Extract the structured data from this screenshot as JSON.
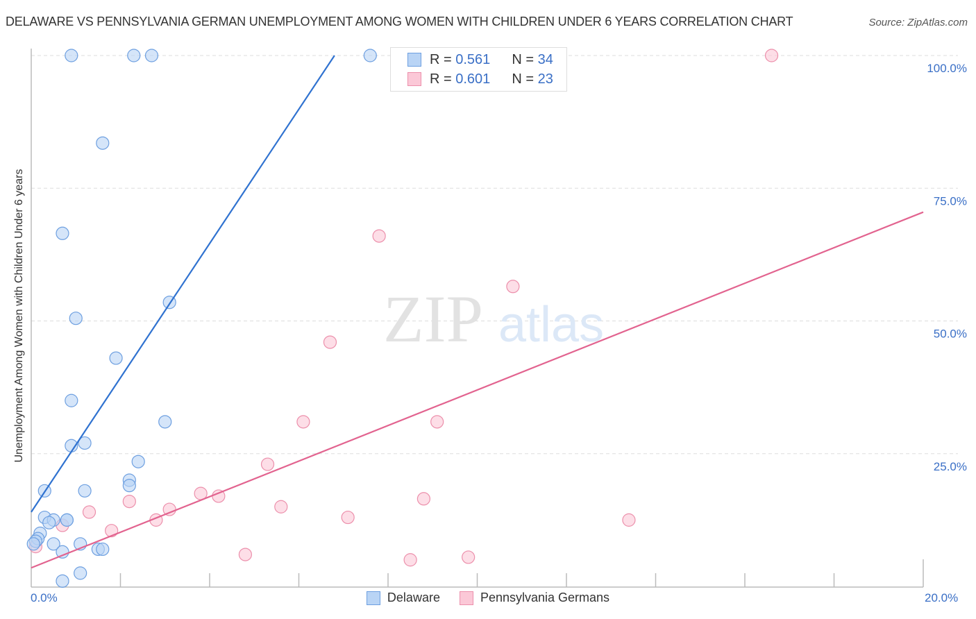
{
  "header": {
    "title": "DELAWARE VS PENNSYLVANIA GERMAN UNEMPLOYMENT AMONG WOMEN WITH CHILDREN UNDER 6 YEARS CORRELATION CHART",
    "source": "Source: ZipAtlas.com"
  },
  "legend": {
    "rows": [
      {
        "r_label": "R =",
        "r_value": "0.561",
        "n_label": "N =",
        "n_value": "34",
        "color": "#b9d4f5",
        "border": "#6d9fe0"
      },
      {
        "r_label": "R =",
        "r_value": "0.601",
        "n_label": "N =",
        "n_value": "23",
        "color": "#fbc8d7",
        "border": "#ec8fab"
      }
    ]
  },
  "bottom_legend": [
    {
      "label": "Delaware",
      "color": "#b9d4f5",
      "border": "#6d9fe0"
    },
    {
      "label": "Pennsylvania Germans",
      "color": "#fbc8d7",
      "border": "#ec8fab"
    }
  ],
  "axes": {
    "ylabel": "Unemployment Among Women with Children Under 6 years",
    "x_min_label": "0.0%",
    "x_max_label": "20.0%",
    "y_ticks": [
      "100.0%",
      "75.0%",
      "50.0%",
      "25.0%"
    ]
  },
  "watermark": {
    "zip": "ZIP",
    "atlas": "atlas"
  },
  "chart_data": {
    "type": "scatter",
    "title": "DELAWARE VS PENNSYLVANIA GERMAN UNEMPLOYMENT AMONG WOMEN WITH CHILDREN UNDER 6 YEARS CORRELATION CHART",
    "xlabel": "",
    "ylabel": "Unemployment Among Women with Children Under 6 years",
    "xlim": [
      0,
      20
    ],
    "ylim": [
      0,
      100
    ],
    "x_unit": "%",
    "y_unit": "%",
    "grid": "horizontal dashed at 25/50/75/100",
    "legend_position": "top-center and bottom",
    "series": [
      {
        "name": "Delaware",
        "color": "#6d9fe0",
        "R": 0.561,
        "N": 34,
        "trendline": {
          "x": [
            0,
            6.8
          ],
          "y": [
            14,
            100
          ]
        },
        "points": [
          [
            0.9,
            100
          ],
          [
            2.3,
            100
          ],
          [
            2.7,
            100
          ],
          [
            7.6,
            100
          ],
          [
            1.6,
            83.5
          ],
          [
            0.7,
            66.5
          ],
          [
            3.1,
            53.5
          ],
          [
            1.0,
            50.5
          ],
          [
            1.9,
            43
          ],
          [
            0.9,
            35
          ],
          [
            3.0,
            31
          ],
          [
            1.2,
            27
          ],
          [
            0.9,
            26.5
          ],
          [
            2.4,
            23.5
          ],
          [
            2.2,
            20
          ],
          [
            2.2,
            19
          ],
          [
            0.3,
            18
          ],
          [
            1.2,
            18
          ],
          [
            0.3,
            13
          ],
          [
            0.5,
            12.5
          ],
          [
            0.8,
            12.5
          ],
          [
            0.4,
            12
          ],
          [
            0.8,
            12.5
          ],
          [
            0.2,
            10
          ],
          [
            0.15,
            9
          ],
          [
            0.1,
            8.5
          ],
          [
            0.05,
            8
          ],
          [
            0.5,
            8
          ],
          [
            1.1,
            8
          ],
          [
            0.7,
            6.5
          ],
          [
            1.5,
            7
          ],
          [
            1.6,
            7
          ],
          [
            1.1,
            2.5
          ],
          [
            0.7,
            1
          ]
        ]
      },
      {
        "name": "Pennsylvania Germans",
        "color": "#ec8fab",
        "R": 0.601,
        "N": 23,
        "trendline": {
          "x": [
            0,
            20
          ],
          "y": [
            3.5,
            70.5
          ]
        },
        "points": [
          [
            16.6,
            100
          ],
          [
            7.8,
            66
          ],
          [
            10.8,
            56.5
          ],
          [
            6.7,
            46
          ],
          [
            6.1,
            31
          ],
          [
            9.1,
            31
          ],
          [
            5.3,
            23
          ],
          [
            3.8,
            17.5
          ],
          [
            4.2,
            17
          ],
          [
            2.2,
            16
          ],
          [
            8.8,
            16.5
          ],
          [
            5.6,
            15
          ],
          [
            1.3,
            14
          ],
          [
            7.1,
            13
          ],
          [
            2.8,
            12.5
          ],
          [
            3.1,
            14.5
          ],
          [
            13.4,
            12.5
          ],
          [
            0.7,
            11.5
          ],
          [
            1.8,
            10.5
          ],
          [
            4.8,
            6
          ],
          [
            9.8,
            5.5
          ],
          [
            8.5,
            5
          ],
          [
            0.1,
            7.5
          ]
        ]
      }
    ]
  }
}
